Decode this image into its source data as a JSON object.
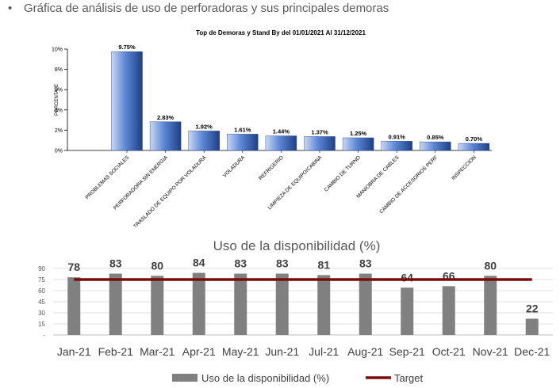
{
  "heading": {
    "bullet": "•",
    "text": "Gráfica de análisis de uso de perforadoras  y sus principales demoras"
  },
  "colors": {
    "bar_top": "#c9d8f5",
    "bar_mid": "#5b87d6",
    "bar_dark": "#1f3f86",
    "bar_gray": "#808080",
    "target": "#7b0c0c"
  },
  "chart_data": [
    {
      "type": "bar",
      "title": "Top de Demoras y Stand By del 01/01/2021 Al 31/12/2021",
      "xlabel": "",
      "ylabel": "PORCENTAJE",
      "ylim": [
        0,
        10
      ],
      "y_ticks": [
        "0%",
        "2%",
        "4%",
        "6%",
        "8%",
        "10%"
      ],
      "grid": false,
      "categories": [
        "PROBLEMAS SOCIALES",
        "PERFORADORA SIN ENERGIA",
        "TRASLADO DE EQUIPO POR VOLADURA",
        "VOLADURA",
        "REFRIGERIO",
        "LIMPIEZA DE EQUIPO/CABINA",
        "CAMBIO DE TURNO",
        "MANIOBRA DE CABLES",
        "CAMBIO DE ACCESORIOS PERF",
        "INSPECCION"
      ],
      "values": [
        9.75,
        2.83,
        1.92,
        1.61,
        1.44,
        1.37,
        1.25,
        0.91,
        0.85,
        0.7
      ],
      "data_labels": [
        "9.75%",
        "2.83%",
        "1.92%",
        "1.61%",
        "1.44%",
        "1.37%",
        "1.25%",
        "0.91%",
        "0.85%",
        "0.70%"
      ]
    },
    {
      "type": "bar",
      "title": "Uso de la disponibilidad (%)",
      "xlabel": "",
      "ylabel": "",
      "ylim": [
        0,
        90
      ],
      "y_ticks": [
        "-",
        "15",
        "30",
        "45",
        "60",
        "75",
        "90"
      ],
      "grid": true,
      "legend": "bottom",
      "categories": [
        "Jan-21",
        "Feb-21",
        "Mar-21",
        "Apr-21",
        "May-21",
        "Jun-21",
        "Jul-21",
        "Aug-21",
        "Sep-21",
        "Oct-21",
        "Nov-21",
        "Dec-21"
      ],
      "series": [
        {
          "name": "Uso de la disponibilidad (%)",
          "type": "bar",
          "values": [
            78,
            83,
            80,
            84,
            83,
            83,
            81,
            83,
            64,
            66,
            80,
            22
          ]
        },
        {
          "name": "Target",
          "type": "line",
          "values": [
            75,
            75,
            75,
            75,
            75,
            75,
            75,
            75,
            75,
            75,
            75,
            75
          ]
        }
      ],
      "data_labels": [
        "78",
        "83",
        "80",
        "84",
        "83",
        "83",
        "81",
        "83",
        "64",
        "66",
        "80",
        "22"
      ]
    }
  ]
}
